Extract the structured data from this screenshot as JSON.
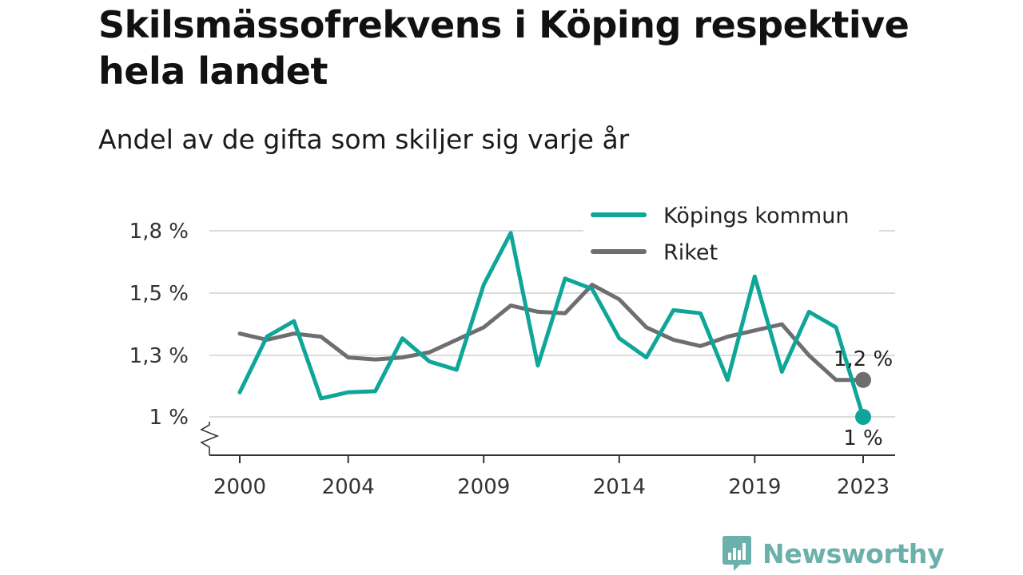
{
  "title": "Skilsmässofrekvens i Köping respektive hela landet",
  "subtitle": "Andel av de gifta som skiljer sig varje år",
  "brand": "Newsworthy",
  "colors": {
    "kommun": "#0fa699",
    "riket": "#6e6d72",
    "grid": "#dcdcdc",
    "axis": "#333333",
    "brand": "#6bb0aa"
  },
  "chart_data": {
    "type": "line",
    "x": [
      2000,
      2001,
      2002,
      2003,
      2004,
      2005,
      2006,
      2007,
      2008,
      2009,
      2010,
      2011,
      2012,
      2013,
      2014,
      2015,
      2016,
      2017,
      2018,
      2019,
      2020,
      2021,
      2022,
      2023
    ],
    "series": [
      {
        "name": "Köpings kommun",
        "values": [
          1.12,
          1.36,
          1.41,
          1.09,
          1.12,
          1.125,
          1.355,
          1.27,
          1.23,
          1.54,
          1.79,
          1.25,
          1.57,
          1.52,
          1.355,
          1.29,
          1.445,
          1.435,
          1.18,
          1.58,
          1.22,
          1.44,
          1.39,
          1.0
        ]
      },
      {
        "name": "Riket",
        "values": [
          1.37,
          1.35,
          1.37,
          1.36,
          1.29,
          1.28,
          1.29,
          1.31,
          1.35,
          1.39,
          1.46,
          1.44,
          1.435,
          1.54,
          1.48,
          1.39,
          1.35,
          1.33,
          1.36,
          1.38,
          1.4,
          1.3,
          1.18,
          1.18
        ]
      }
    ],
    "yticks": [
      1.0,
      1.3,
      1.5,
      1.8
    ],
    "ytick_labels": [
      "1 %",
      "1,3 %",
      "1,5 %",
      "1,8 %"
    ],
    "xticks": [
      2000,
      2004,
      2009,
      2014,
      2019,
      2023
    ],
    "xtick_labels": [
      "2000",
      "2004",
      "2009",
      "2014",
      "2019",
      "2023"
    ],
    "end_labels": {
      "Riket": "1,2 %",
      "Köpings kommun": "1 %"
    },
    "ylim": [
      1.0,
      1.9
    ],
    "y_axis_break": true,
    "grid": true,
    "legend": "top-right"
  }
}
